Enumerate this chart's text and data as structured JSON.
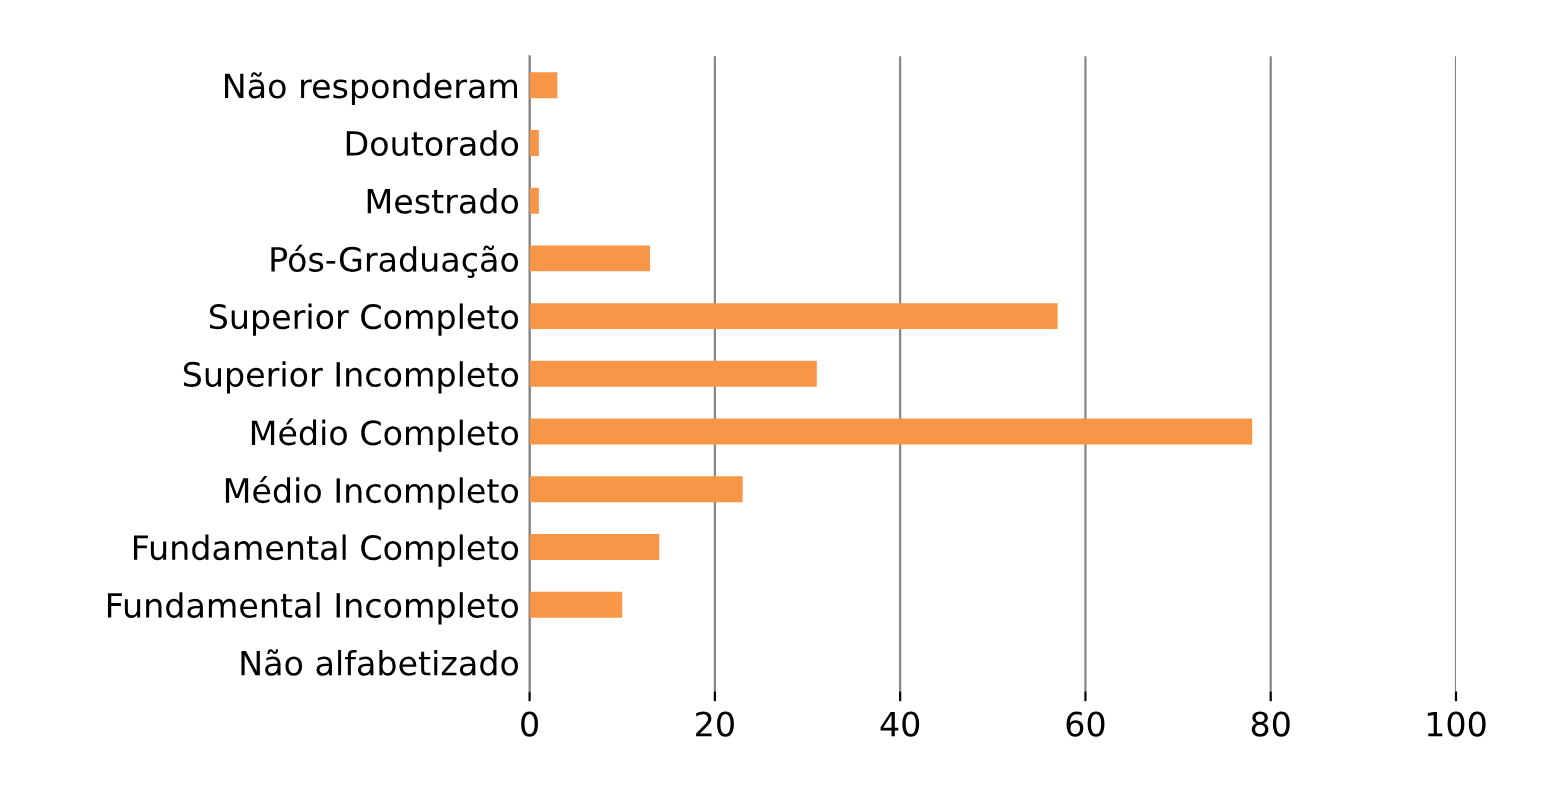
{
  "chart_data": {
    "type": "bar",
    "orientation": "horizontal",
    "categories": [
      "Não responderam",
      "Doutorado",
      "Mestrado",
      "Pós-Graduação",
      "Superior Completo",
      "Superior Incompleto",
      "Médio Completo",
      "Médio Incompleto",
      "Fundamental Completo",
      "Fundamental Incompleto",
      "Não alfabetizado"
    ],
    "values": [
      3,
      1,
      1,
      13,
      57,
      31,
      78,
      23,
      14,
      10,
      0
    ],
    "color": "#f79646",
    "xlim": [
      0,
      100
    ],
    "xticks": [
      0,
      20,
      40,
      60,
      80,
      100
    ],
    "grid": "x"
  }
}
